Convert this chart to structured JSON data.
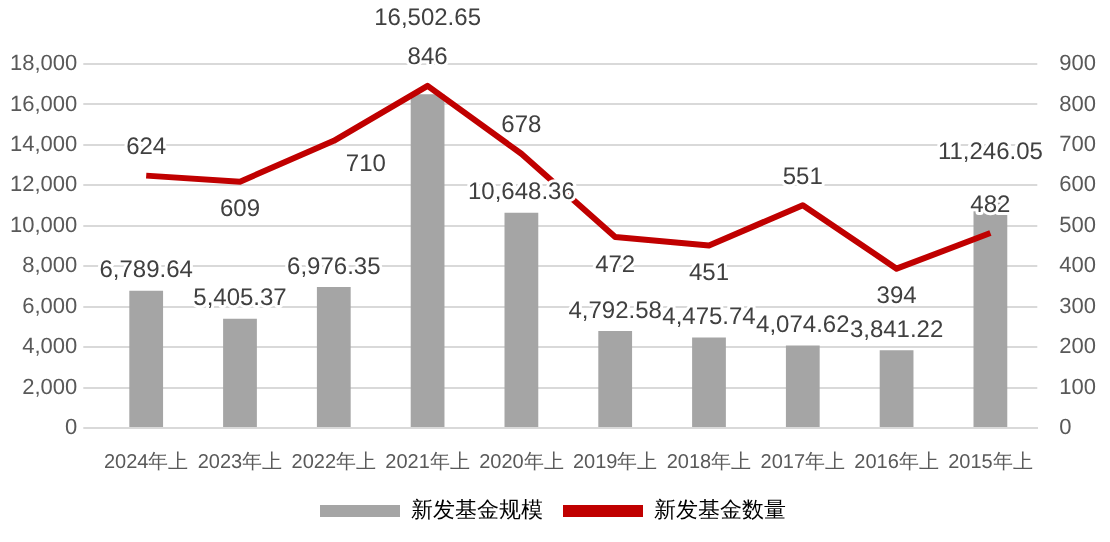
{
  "chart_data": {
    "type": "bar",
    "categories": [
      "2024年上",
      "2023年上",
      "2022年上",
      "2021年上",
      "2020年上",
      "2019年上",
      "2018年上",
      "2017年上",
      "2016年上",
      "2015年上"
    ],
    "series": [
      {
        "name": "新发基金规模",
        "color": "#a5a5a5",
        "values": [
          6789.64,
          5405.37,
          6976.35,
          16502.65,
          10648.36,
          4792.58,
          4475.74,
          4074.62,
          3841.22,
          11246.05
        ],
        "value_labels": [
          "6,789.64",
          "5,405.37",
          "6,976.35",
          "16,502.65",
          "10,648.36",
          "4,792.58",
          "4,475.74",
          "4,074.62",
          "3,841.22",
          "11,246.05"
        ]
      },
      {
        "name": "新发基金数量",
        "type": "line",
        "axis": "y2",
        "color": "#c00000",
        "values": [
          624,
          609,
          710,
          846,
          678,
          472,
          451,
          551,
          394,
          482
        ],
        "value_labels": [
          "624",
          "609",
          "710",
          "846",
          "678",
          "472",
          "451",
          "551",
          "394",
          "482"
        ]
      }
    ],
    "ylim": [
      0,
      18000
    ],
    "yticks": [
      0,
      {
        "value": 2000,
        "label": "2,000"
      },
      {
        "value": 4000,
        "label": "4,000"
      },
      {
        "value": 6000,
        "label": "6,000"
      },
      {
        "value": 8000,
        "label": "8,000"
      },
      {
        "value": 10000,
        "label": "10,000"
      },
      {
        "value": 12000,
        "label": "12,000"
      },
      {
        "value": 14000,
        "label": "14,000"
      },
      {
        "value": 16000,
        "label": "16,000"
      },
      {
        "value": 18000,
        "label": "18,000"
      }
    ],
    "y2lim": [
      0,
      900
    ],
    "y2ticks": [
      0,
      100,
      200,
      300,
      400,
      500,
      600,
      700,
      800,
      900
    ],
    "grid": "y",
    "legend": "bottom",
    "marker": "none",
    "line_style": "solid"
  }
}
